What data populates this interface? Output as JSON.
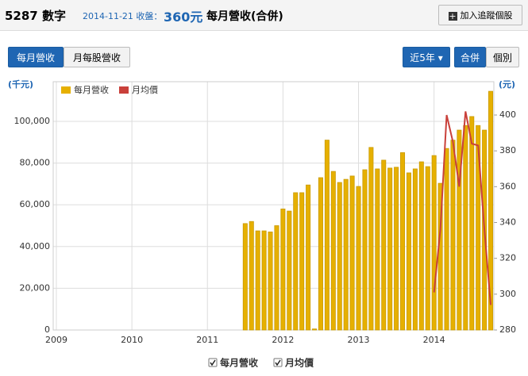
{
  "header": {
    "stock": "5287 數字",
    "date": "2014-11-21 收盤：",
    "price": "360元",
    "report": "每月營收(合併)",
    "follow_button": "加入追蹤個股"
  },
  "tabs": [
    "每月營收",
    "月每股營收"
  ],
  "range": "近5年",
  "scope": [
    "合併",
    "個別"
  ],
  "chart_data": {
    "type": "bar",
    "y_label": "(千元)",
    "y2_label": "(元)",
    "categories": [
      "2009",
      null,
      null,
      null,
      null,
      null,
      null,
      null,
      null,
      null,
      null,
      null,
      "2010",
      null,
      null,
      null,
      null,
      null,
      null,
      null,
      null,
      null,
      null,
      null,
      "2011",
      null,
      null,
      null,
      null,
      null,
      null,
      null,
      null,
      null,
      null,
      null,
      "2012",
      null,
      null,
      null,
      null,
      null,
      null,
      null,
      null,
      null,
      null,
      null,
      "2013",
      null,
      null,
      null,
      null,
      null,
      null,
      null,
      null,
      null,
      null,
      null,
      "2014",
      null,
      null,
      null,
      null,
      null,
      null,
      null,
      null,
      null
    ],
    "series": [
      {
        "name": "每月營收",
        "color": "#e6b000",
        "values": [
          0,
          0,
          0,
          0,
          0,
          0,
          0,
          0,
          0,
          0,
          0,
          0,
          0,
          0,
          0,
          0,
          0,
          0,
          0,
          0,
          0,
          0,
          0,
          0,
          0,
          0,
          0,
          0,
          0,
          0,
          51000,
          52000,
          47500,
          47500,
          47000,
          50000,
          58000,
          57000,
          65800,
          65800,
          69500,
          500,
          73000,
          91000,
          76000,
          70700,
          72200,
          73800,
          68800,
          76800,
          87500,
          77200,
          81400,
          77600,
          78000,
          85000,
          75300,
          77200,
          80600,
          78300,
          83600,
          70300,
          87000,
          91000,
          95800,
          98000,
          102300,
          98000,
          95800,
          114400
        ]
      },
      {
        "name": "月均價",
        "color": "#c9403a",
        "type": "line",
        "axis": "y2",
        "values": [
          null,
          null,
          null,
          null,
          null,
          null,
          null,
          null,
          null,
          null,
          null,
          null,
          null,
          null,
          null,
          null,
          null,
          null,
          null,
          null,
          null,
          null,
          null,
          null,
          null,
          null,
          null,
          null,
          null,
          null,
          null,
          null,
          null,
          null,
          null,
          null,
          null,
          null,
          null,
          null,
          null,
          null,
          null,
          null,
          null,
          null,
          null,
          null,
          null,
          null,
          null,
          null,
          null,
          null,
          null,
          null,
          null,
          null,
          null,
          null,
          301,
          336,
          400,
          385,
          360,
          402,
          384,
          383,
          336,
          294
        ]
      }
    ],
    "ylim": [
      0,
      119000
    ],
    "yticks": [
      0,
      {
        "value": 20000,
        "label": "20,000"
      },
      {
        "value": 40000,
        "label": "40,000"
      },
      {
        "value": 60000,
        "label": "60,000"
      },
      {
        "value": 80000,
        "label": "80,000"
      },
      {
        "value": 100000,
        "label": "100,000"
      }
    ],
    "y2lim": [
      280,
      418.6
    ],
    "y2ticks": [
      280,
      300,
      320,
      340,
      360,
      380,
      400
    ],
    "grid": true
  }
}
